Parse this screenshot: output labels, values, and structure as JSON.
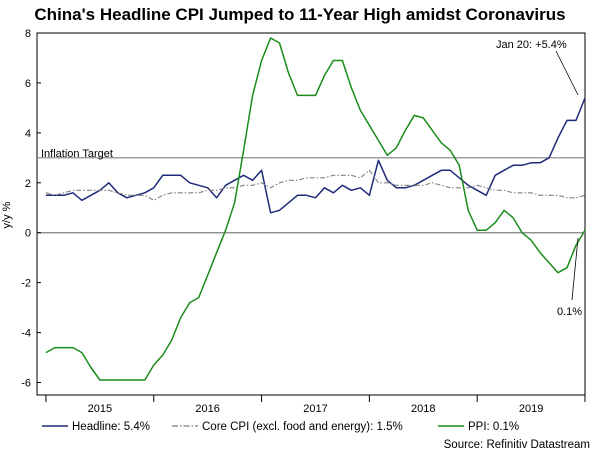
{
  "chart_data": {
    "type": "line",
    "title": "China's Headline CPI Jumped to 11-Year High amidst Coronavirus",
    "ylabel": "y/y %",
    "xlabel": "",
    "ylim": [
      -6.5,
      8
    ],
    "yticks": [
      8,
      6,
      4,
      2,
      0,
      -2,
      -4,
      -6
    ],
    "x_range": [
      2014.917,
      2020.0
    ],
    "year_labels": [
      "2015",
      "2016",
      "2017",
      "2018",
      "2019"
    ],
    "reference_lines": [
      {
        "name": "Inflation Target",
        "value": 3.0,
        "label": "Inflation Target",
        "color": "#808080"
      },
      {
        "name": "Zero",
        "value": 0.0,
        "label": "",
        "color": "#808080"
      }
    ],
    "series": [
      {
        "name": "Headline",
        "legend": "Headline: 5.4%",
        "color": "#1f2a7a",
        "style": "solid",
        "start": "2015-01",
        "values": [
          1.5,
          1.5,
          1.5,
          1.6,
          1.3,
          1.5,
          1.7,
          2.0,
          1.6,
          1.4,
          1.5,
          1.6,
          1.8,
          2.3,
          2.3,
          2.3,
          2.0,
          1.9,
          1.8,
          1.4,
          1.9,
          2.1,
          2.3,
          2.1,
          2.5,
          0.8,
          0.9,
          1.2,
          1.5,
          1.5,
          1.4,
          1.8,
          1.6,
          1.9,
          1.7,
          1.8,
          1.5,
          2.9,
          2.1,
          1.8,
          1.8,
          1.9,
          2.1,
          2.3,
          2.5,
          2.5,
          2.2,
          1.9,
          1.7,
          1.5,
          2.3,
          2.5,
          2.7,
          2.7,
          2.8,
          2.8,
          3.0,
          3.8,
          4.5,
          4.5,
          5.4
        ]
      },
      {
        "name": "Core CPI",
        "legend": "Core CPI (excl. food and energy): 1.5%",
        "color": "#808080",
        "style": "dashdot",
        "start": "2015-01",
        "values": [
          1.6,
          1.5,
          1.6,
          1.7,
          1.7,
          1.7,
          1.7,
          1.7,
          1.6,
          1.5,
          1.5,
          1.5,
          1.3,
          1.5,
          1.6,
          1.6,
          1.6,
          1.6,
          1.7,
          1.7,
          1.8,
          1.8,
          1.9,
          1.9,
          2.0,
          1.8,
          2.0,
          2.1,
          2.1,
          2.2,
          2.2,
          2.2,
          2.3,
          2.3,
          2.3,
          2.2,
          2.5,
          2.0,
          2.0,
          1.9,
          1.9,
          1.9,
          1.9,
          2.0,
          1.9,
          1.8,
          1.8,
          1.8,
          1.9,
          1.8,
          1.7,
          1.7,
          1.6,
          1.6,
          1.6,
          1.5,
          1.5,
          1.5,
          1.4,
          1.4,
          1.5
        ]
      },
      {
        "name": "PPI",
        "legend": "PPI: 0.1%",
        "color": "#1a8c1a",
        "style": "solid",
        "start": "2015-01",
        "values": [
          -4.8,
          -4.6,
          -4.6,
          -4.6,
          -4.8,
          -5.4,
          -5.9,
          -5.9,
          -5.9,
          -5.9,
          -5.9,
          -5.9,
          -5.3,
          -4.9,
          -4.3,
          -3.4,
          -2.8,
          -2.6,
          -1.7,
          -0.8,
          0.1,
          1.2,
          3.3,
          5.5,
          6.9,
          7.8,
          7.6,
          6.4,
          5.5,
          5.5,
          5.5,
          6.3,
          6.9,
          6.9,
          5.8,
          4.9,
          4.3,
          3.7,
          3.1,
          3.4,
          4.1,
          4.7,
          4.6,
          4.1,
          3.6,
          3.3,
          2.7,
          0.9,
          0.1,
          0.1,
          0.4,
          0.9,
          0.6,
          0.0,
          -0.3,
          -0.8,
          -1.2,
          -1.6,
          -1.4,
          -0.5,
          0.1
        ]
      }
    ],
    "annotations": [
      {
        "name": "headline-annotation",
        "text": "Jan 20: +5.4%",
        "target_series": "Headline"
      },
      {
        "name": "ppi-annotation",
        "text": "0.1%",
        "target_series": "PPI"
      }
    ],
    "source": "Source: Refinitiv Datastream"
  }
}
